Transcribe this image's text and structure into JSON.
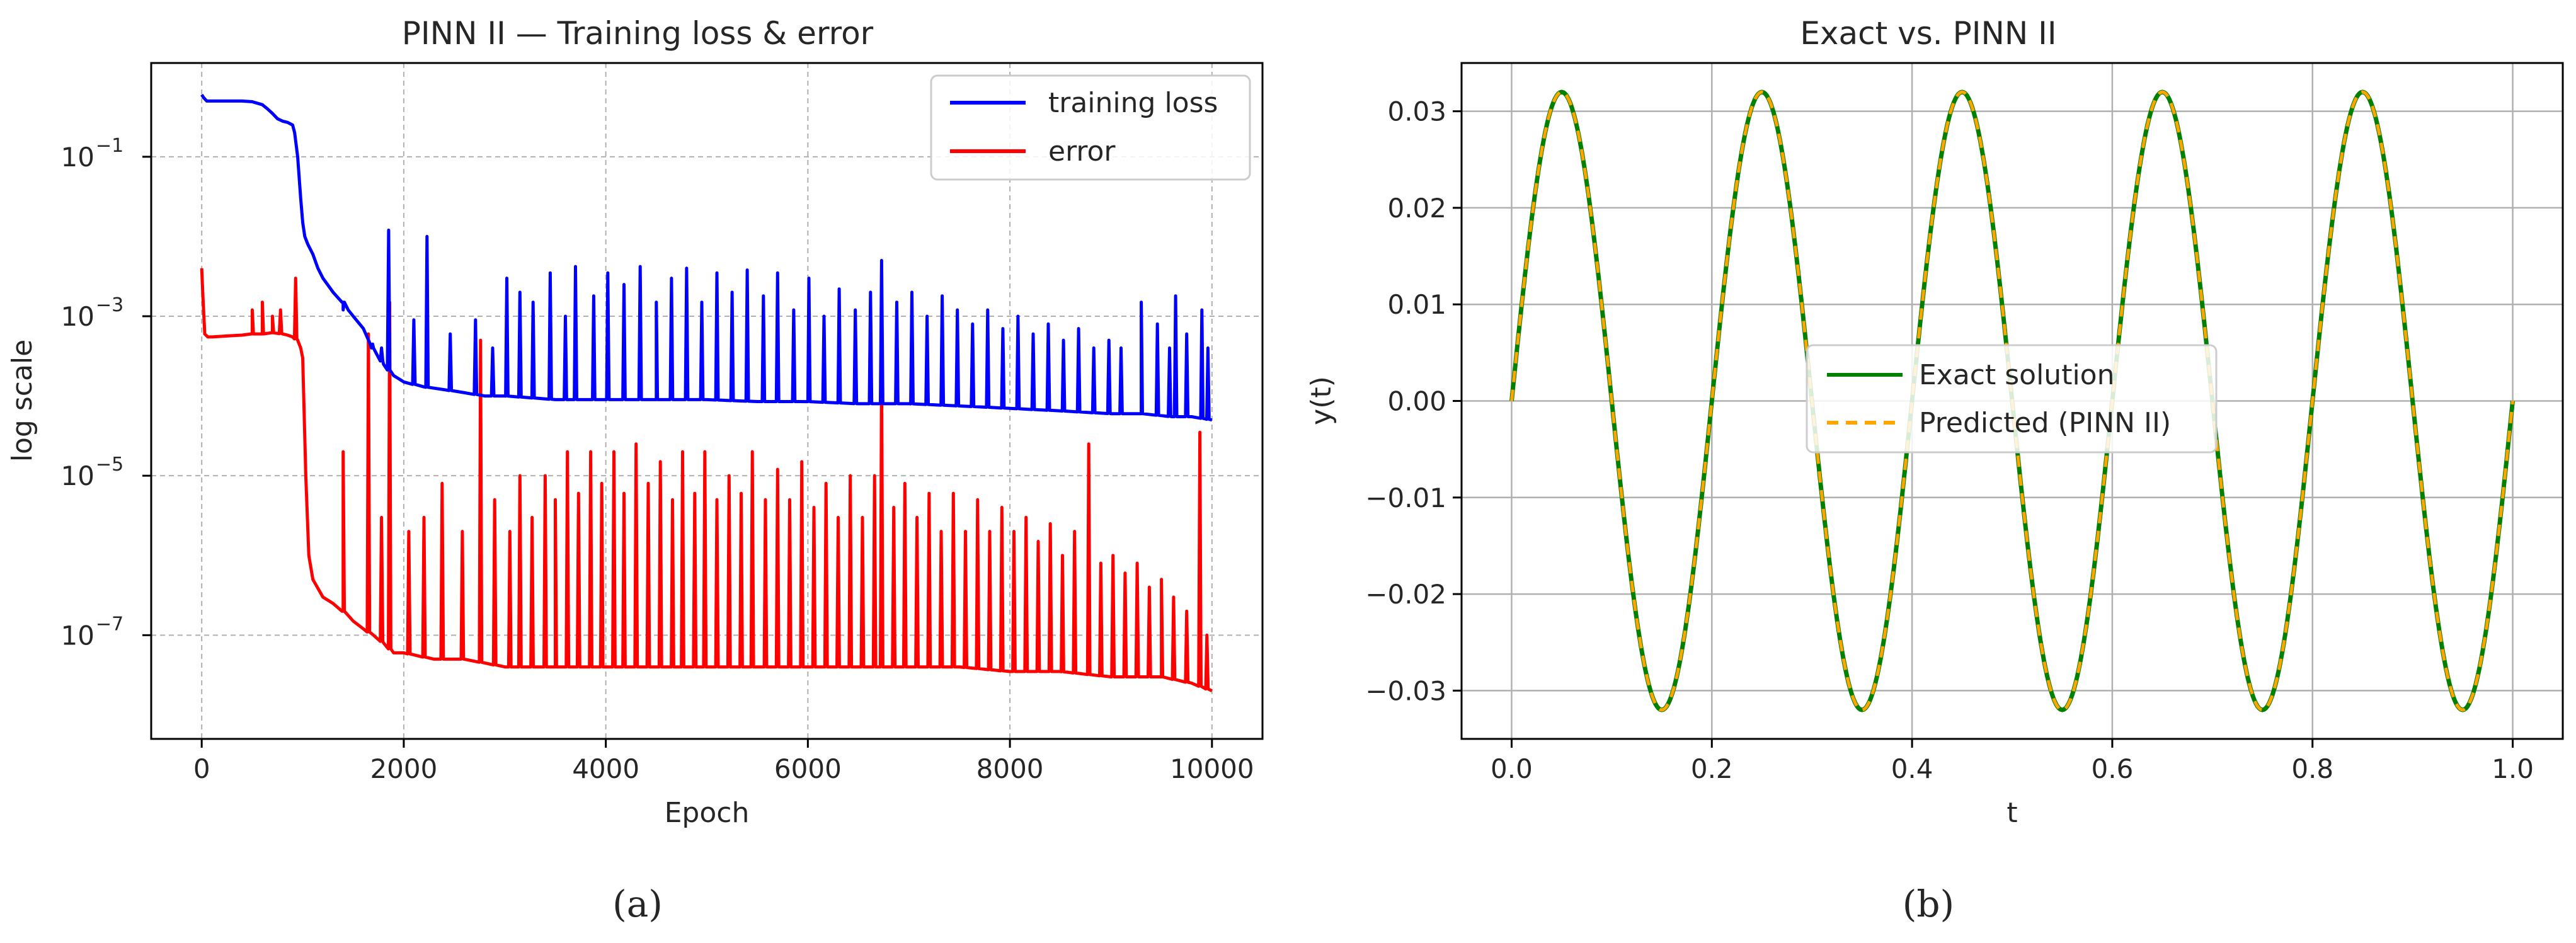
{
  "figure": {
    "panel_a_caption": "(a)",
    "panel_b_caption": "(b)"
  },
  "chart_data": [
    {
      "type": "line",
      "title": "PINN II — Training loss & error",
      "xlabel": "Epoch",
      "ylabel": "log scale",
      "yscale": "log",
      "xlim": [
        -500,
        10500
      ],
      "ylim": [
        5e-09,
        1.5
      ],
      "xticks": [
        0,
        2000,
        4000,
        6000,
        8000,
        10000
      ],
      "xtick_labels": [
        "0",
        "2000",
        "4000",
        "6000",
        "8000",
        "10000"
      ],
      "yticks": [
        1e-07,
        1e-05,
        0.001,
        0.1
      ],
      "ytick_labels": [
        "10",
        "10",
        "10",
        "10"
      ],
      "ytick_exponents": [
        "−7",
        "−5",
        "−3",
        "−1"
      ],
      "grid": "dashed",
      "legend_placement": "top-right",
      "series": [
        {
          "name": "training loss",
          "color": "#0000ff",
          "x": [
            0,
            20,
            50,
            100,
            200,
            300,
            400,
            500,
            600,
            650,
            700,
            750,
            800,
            850,
            900,
            920,
            950,
            980,
            1000,
            1020,
            1050,
            1100,
            1150,
            1200,
            1300,
            1400,
            1450,
            1500,
            1600,
            1700,
            1800,
            1900,
            2000,
            2200,
            2400,
            2600,
            2800,
            3000,
            3500,
            4000,
            4500,
            5000,
            5500,
            6000,
            6500,
            7000,
            7500,
            8000,
            8500,
            9000,
            9300,
            9600,
            9800,
            10000
          ],
          "y": [
            0.6,
            0.55,
            0.5,
            0.5,
            0.5,
            0.5,
            0.5,
            0.49,
            0.45,
            0.4,
            0.35,
            0.3,
            0.28,
            0.27,
            0.25,
            0.2,
            0.1,
            0.03,
            0.015,
            0.01,
            0.008,
            0.006,
            0.004,
            0.003,
            0.002,
            0.0015,
            0.0012,
            0.001,
            0.0007,
            0.0004,
            0.00025,
            0.00018,
            0.00015,
            0.00013,
            0.00012,
            0.00011,
            0.0001,
            0.0001,
            9e-05,
            9e-05,
            9e-05,
            9e-05,
            8.5e-05,
            8.5e-05,
            8e-05,
            8e-05,
            7.5e-05,
            7e-05,
            6.5e-05,
            6e-05,
            6e-05,
            5.5e-05,
            5.5e-05,
            5e-05
          ],
          "spikes": [
            [
              1400,
              0.0012
            ],
            [
              1680,
              0.0004
            ],
            [
              1780,
              0.0004
            ],
            [
              1850,
              0.012
            ],
            [
              2100,
              0.0009
            ],
            [
              2230,
              0.01
            ],
            [
              2460,
              0.0006
            ],
            [
              2710,
              0.0009
            ],
            [
              2880,
              0.0004
            ],
            [
              3020,
              0.003
            ],
            [
              3150,
              0.002
            ],
            [
              3280,
              0.0015
            ],
            [
              3450,
              0.0035
            ],
            [
              3600,
              0.001
            ],
            [
              3700,
              0.0042
            ],
            [
              3880,
              0.0018
            ],
            [
              4020,
              0.0035
            ],
            [
              4180,
              0.0025
            ],
            [
              4340,
              0.0042
            ],
            [
              4500,
              0.0015
            ],
            [
              4650,
              0.003
            ],
            [
              4800,
              0.004
            ],
            [
              4950,
              0.0015
            ],
            [
              5100,
              0.0035
            ],
            [
              5250,
              0.002
            ],
            [
              5400,
              0.0038
            ],
            [
              5560,
              0.0018
            ],
            [
              5700,
              0.0035
            ],
            [
              5860,
              0.0012
            ],
            [
              6010,
              0.003
            ],
            [
              6160,
              0.001
            ],
            [
              6310,
              0.0022
            ],
            [
              6470,
              0.0012
            ],
            [
              6620,
              0.002
            ],
            [
              6730,
              0.005
            ],
            [
              6880,
              0.0015
            ],
            [
              7030,
              0.002
            ],
            [
              7180,
              0.001
            ],
            [
              7330,
              0.0018
            ],
            [
              7480,
              0.0012
            ],
            [
              7630,
              0.0008
            ],
            [
              7780,
              0.0012
            ],
            [
              7930,
              0.0007
            ],
            [
              8080,
              0.001
            ],
            [
              8230,
              0.0006
            ],
            [
              8380,
              0.0008
            ],
            [
              8530,
              0.0005
            ],
            [
              8680,
              0.0007
            ],
            [
              8830,
              0.0004
            ],
            [
              8980,
              0.0005
            ],
            [
              9100,
              0.0004
            ],
            [
              9300,
              0.0015
            ],
            [
              9460,
              0.0008
            ],
            [
              9580,
              0.0004
            ],
            [
              9640,
              0.0018
            ],
            [
              9750,
              0.0006
            ],
            [
              9900,
              0.0012
            ],
            [
              9960,
              0.0004
            ]
          ]
        },
        {
          "name": "error",
          "color": "#ff0000",
          "x": [
            0,
            10,
            30,
            60,
            100,
            200,
            300,
            400,
            500,
            600,
            700,
            800,
            850,
            900,
            950,
            980,
            1000,
            1030,
            1060,
            1100,
            1200,
            1300,
            1400,
            1500,
            1600,
            1700,
            1800,
            1900,
            2000,
            2300,
            2600,
            3000,
            3500,
            4000,
            4500,
            5000,
            5500,
            6000,
            6500,
            7000,
            7500,
            8000,
            8500,
            9000,
            9500,
            9800,
            10000
          ],
          "y": [
            0.004,
            0.002,
            0.0006,
            0.00055,
            0.00055,
            0.00056,
            0.00057,
            0.00058,
            0.0006,
            0.0006,
            0.00062,
            0.0006,
            0.00058,
            0.00055,
            0.0005,
            0.0004,
            0.0003,
            1e-05,
            1e-06,
            5e-07,
            3e-07,
            2.5e-07,
            2e-07,
            1.5e-07,
            1.2e-07,
            1e-07,
            8e-08,
            6e-08,
            6e-08,
            5e-08,
            5e-08,
            4e-08,
            4e-08,
            4e-08,
            4e-08,
            4e-08,
            4e-08,
            4e-08,
            4e-08,
            4e-08,
            4e-08,
            3.5e-08,
            3.5e-08,
            3e-08,
            3e-08,
            2.5e-08,
            2e-08
          ],
          "spikes": [
            [
              500,
              0.0012
            ],
            [
              600,
              0.0015
            ],
            [
              700,
              0.001
            ],
            [
              780,
              0.0012
            ],
            [
              930,
              0.003
            ],
            [
              1400,
              2e-05
            ],
            [
              1650,
              0.0006
            ],
            [
              1780,
              3e-06
            ],
            [
              1860,
              0.0015
            ],
            [
              2050,
              2e-06
            ],
            [
              2200,
              3e-06
            ],
            [
              2380,
              8e-06
            ],
            [
              2580,
              2e-06
            ],
            [
              2760,
              0.0005
            ],
            [
              2900,
              5e-06
            ],
            [
              3050,
              2e-06
            ],
            [
              3150,
              1e-05
            ],
            [
              3270,
              3e-06
            ],
            [
              3400,
              1e-05
            ],
            [
              3500,
              5e-06
            ],
            [
              3620,
              2e-05
            ],
            [
              3730,
              6e-06
            ],
            [
              3850,
              2e-05
            ],
            [
              3960,
              8e-06
            ],
            [
              4080,
              2e-05
            ],
            [
              4180,
              6e-06
            ],
            [
              4300,
              2.5e-05
            ],
            [
              4420,
              8e-06
            ],
            [
              4540,
              1.5e-05
            ],
            [
              4660,
              5e-06
            ],
            [
              4760,
              2e-05
            ],
            [
              4880,
              6e-06
            ],
            [
              4980,
              2e-05
            ],
            [
              5100,
              5e-06
            ],
            [
              5220,
              1e-05
            ],
            [
              5340,
              6e-06
            ],
            [
              5450,
              2e-05
            ],
            [
              5580,
              5e-06
            ],
            [
              5700,
              1.2e-05
            ],
            [
              5820,
              5e-06
            ],
            [
              5940,
              1.5e-05
            ],
            [
              6060,
              4e-06
            ],
            [
              6180,
              8e-06
            ],
            [
              6300,
              3e-06
            ],
            [
              6420,
              1e-05
            ],
            [
              6540,
              3e-06
            ],
            [
              6660,
              1e-05
            ],
            [
              6730,
              0.0002
            ],
            [
              6850,
              4e-06
            ],
            [
              6960,
              8e-06
            ],
            [
              7080,
              3e-06
            ],
            [
              7200,
              6e-06
            ],
            [
              7320,
              2e-06
            ],
            [
              7440,
              6e-06
            ],
            [
              7560,
              2e-06
            ],
            [
              7680,
              5e-06
            ],
            [
              7800,
              2e-06
            ],
            [
              7920,
              4e-06
            ],
            [
              8040,
              2e-06
            ],
            [
              8160,
              3e-06
            ],
            [
              8280,
              1.5e-06
            ],
            [
              8400,
              2.5e-06
            ],
            [
              8520,
              1e-06
            ],
            [
              8640,
              2e-06
            ],
            [
              8780,
              2.5e-05
            ],
            [
              8900,
              8e-07
            ],
            [
              9020,
              1e-06
            ],
            [
              9140,
              6e-07
            ],
            [
              9260,
              8e-07
            ],
            [
              9380,
              4e-07
            ],
            [
              9500,
              5e-07
            ],
            [
              9620,
              3e-07
            ],
            [
              9750,
              2e-07
            ],
            [
              9880,
              3.5e-05
            ],
            [
              9950,
              1e-07
            ]
          ]
        }
      ]
    },
    {
      "type": "line",
      "title": "Exact vs. PINN II",
      "xlabel": "t",
      "ylabel": "y(t)",
      "xlim": [
        -0.05,
        1.05
      ],
      "ylim": [
        -0.035,
        0.035
      ],
      "xticks": [
        0.0,
        0.2,
        0.4,
        0.6,
        0.8,
        1.0
      ],
      "xtick_labels": [
        "0.0",
        "0.2",
        "0.4",
        "0.6",
        "0.8",
        "1.0"
      ],
      "yticks": [
        -0.03,
        -0.02,
        -0.01,
        0.0,
        0.01,
        0.02,
        0.03
      ],
      "ytick_labels": [
        "−0.03",
        "−0.02",
        "−0.01",
        "0.00",
        "0.01",
        "0.02",
        "0.03"
      ],
      "grid": "solid",
      "legend_placement": "center",
      "amplitude": 0.032,
      "frequency": 5,
      "series": [
        {
          "name": "Exact solution",
          "color": "#008000",
          "style": "solid"
        },
        {
          "name": "Predicted (PINN II)",
          "color": "#ffa500",
          "style": "dashed"
        }
      ]
    }
  ]
}
